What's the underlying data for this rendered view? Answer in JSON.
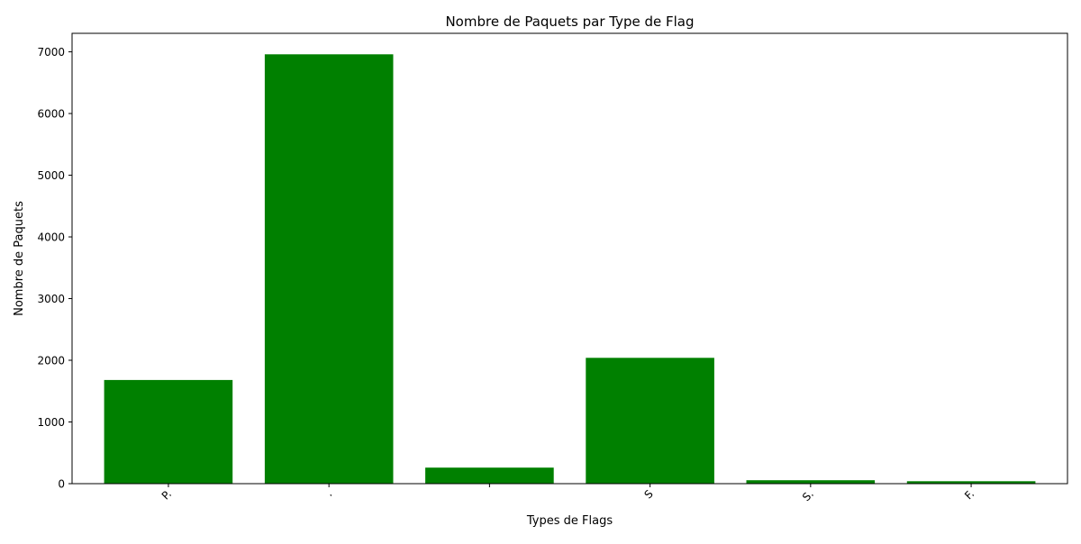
{
  "chart_data": {
    "type": "bar",
    "title": "Nombre de Paquets par Type de Flag",
    "xlabel": "Types de Flags",
    "ylabel": "Nombre de Paquets",
    "categories": [
      "P.",
      ".",
      "",
      "S",
      "S.",
      "F."
    ],
    "values": [
      1680,
      6960,
      260,
      2040,
      55,
      40
    ],
    "ylim": [
      0,
      7300
    ],
    "yticks": [
      0,
      1000,
      2000,
      3000,
      4000,
      5000,
      6000,
      7000
    ],
    "ytick_labels": [
      "0",
      "1000",
      "2000",
      "3000",
      "4000",
      "5000",
      "6000",
      "7000"
    ],
    "xtick_rotation": -45,
    "bar_color": "#008000",
    "grid": false
  }
}
